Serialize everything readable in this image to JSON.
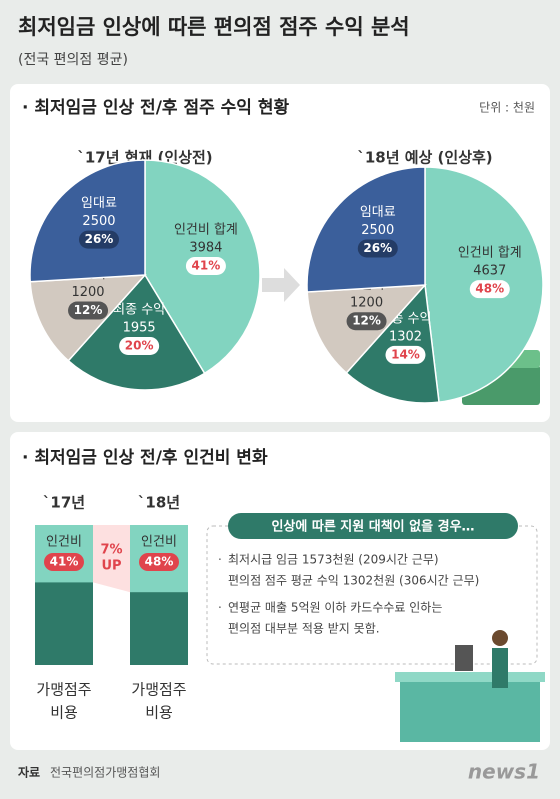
{
  "header": {
    "title": "최저임금 인상에 따른 편의점 점주 수익 분석",
    "subtitle": "(전국 편의점 평균)"
  },
  "section1": {
    "title": "· 최저임금 인상 전/후 점주 수익 현황",
    "unit": "단위 : 천원"
  },
  "section2": {
    "title": "· 최저임금 인상 전/후 인건비 변화",
    "change_label": [
      "7%",
      "UP"
    ]
  },
  "chart_data": [
    {
      "type": "pie",
      "title": "`17년 현재 (인상전)",
      "categories": [
        "인건비 합계",
        "최종 수익",
        "영업비",
        "임대료"
      ],
      "values": [
        3984,
        1955,
        1200,
        2500
      ],
      "percent_labels": [
        "41%",
        "20%",
        "12%",
        "26%"
      ],
      "colors": [
        "#82d4c0",
        "#2f7a69",
        "#d2c9c0",
        "#3b5f9b"
      ]
    },
    {
      "type": "pie",
      "title": "`18년 예상 (인상후)",
      "categories": [
        "인건비 합계",
        "최종 수익",
        "영업비",
        "임대료"
      ],
      "values": [
        4637,
        1302,
        1200,
        2500
      ],
      "percent_labels": [
        "48%",
        "14%",
        "12%",
        "26%"
      ],
      "colors": [
        "#82d4c0",
        "#2f7a69",
        "#d2c9c0",
        "#3b5f9b"
      ]
    },
    {
      "type": "bar",
      "categories": [
        "`17년",
        "`18년"
      ],
      "bottom_labels": [
        [
          "가맹점주",
          "비용"
        ],
        [
          "가맹점주",
          "비용"
        ]
      ],
      "ylim": [
        0,
        100
      ],
      "series": [
        {
          "name": "인건비",
          "color": "#82d4c0",
          "values": [
            41,
            48
          ],
          "value_labels": [
            "41%",
            "48%"
          ]
        }
      ]
    }
  ],
  "note": {
    "title": "인상에 따른 지원 대책이 없을 경우…",
    "items": [
      [
        "최저시급 임금 1573천원 (209시간 근무)",
        "편의점 점주 평균 수익 1302천원 (306시간 근무)"
      ],
      [
        "연평균 매출 5억원 이하 카드수수료 인하는",
        "편의점 대부분 적용 받지 못함."
      ]
    ]
  },
  "footer": {
    "source_label": "자료",
    "source": "전국편의점가맹점협회",
    "logo": "news1"
  }
}
